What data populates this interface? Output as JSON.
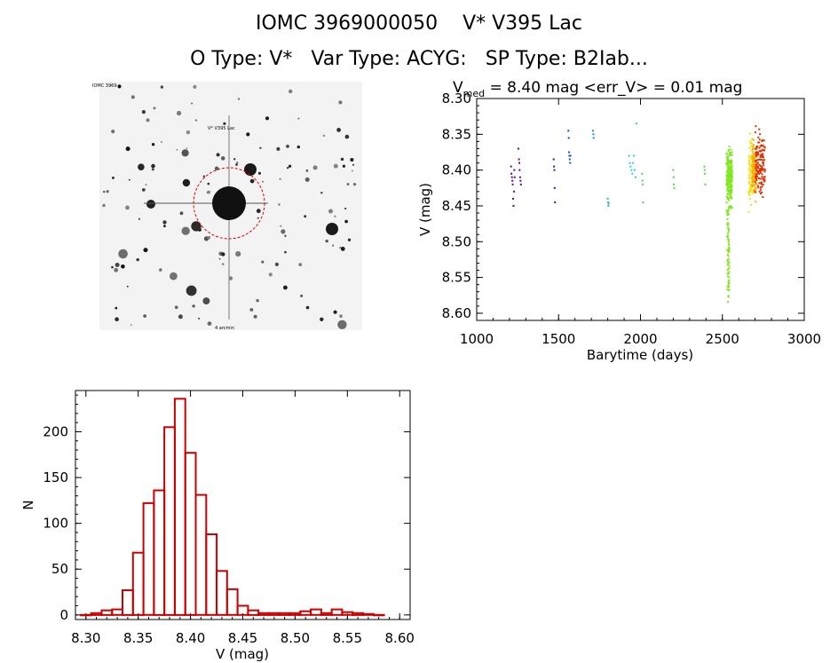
{
  "header": {
    "title_line1": "IOMC 3969000050    V* V395 Lac",
    "title_line2": "O Type: V*   Var Type: ACYG:   SP Type: B2Iab..."
  },
  "finder_chart": {
    "top_left_label": "IOMC 3969",
    "target_label": "V* V395 Lac",
    "bottom_label": "4 arcmin"
  },
  "colors": {
    "hist_bars": "#cc0000",
    "finder_circle": "#dd0000",
    "series_palette": [
      "#5a0a8c",
      "#2a1f9e",
      "#1b4fb8",
      "#1f8fd0",
      "#2fb8cc",
      "#28d0d8",
      "#5ad05a",
      "#7fe81e",
      "#e8e81e",
      "#ffaa00",
      "#dd3300"
    ]
  },
  "chart_data": [
    {
      "type": "scatter",
      "title_prefix": "V",
      "title_subscript": "med",
      "title_rest": " = 8.40 mag <err_V> = 0.01 mag",
      "xlabel": "Barytime (days)",
      "ylabel": "V (mag)",
      "xlim": [
        1000,
        3000
      ],
      "ylim": [
        8.3,
        8.61
      ],
      "y_inverted": true,
      "xticks": [
        1000,
        1500,
        2000,
        2500,
        3000
      ],
      "xtick_labels": [
        "1000",
        "1500",
        "2000",
        "2500",
        "3000"
      ],
      "yticks": [
        8.3,
        8.35,
        8.4,
        8.45,
        8.5,
        8.55,
        8.6
      ],
      "ytick_labels": [
        "8.30",
        "8.35",
        "8.40",
        "8.45",
        "8.50",
        "8.55",
        "8.60"
      ],
      "series": [
        {
          "name": "s1",
          "color": "#5a0a8c",
          "x": [
            1210,
            1212,
            1215,
            1218,
            1220,
            1222,
            1225,
            1228,
            1230,
            1232,
            1255,
            1258,
            1260,
            1262,
            1265,
            1268,
            1270
          ],
          "y": [
            8.395,
            8.405,
            8.41,
            8.415,
            8.42,
            8.44,
            8.45,
            8.43,
            8.4,
            8.41,
            8.37,
            8.385,
            8.39,
            8.4,
            8.41,
            8.415,
            8.42
          ]
        },
        {
          "name": "s2",
          "color": "#2a1f9e",
          "x": [
            1470,
            1472,
            1474,
            1476,
            1478
          ],
          "y": [
            8.385,
            8.395,
            8.4,
            8.425,
            8.445
          ]
        },
        {
          "name": "s3",
          "color": "#1b4fb8",
          "x": [
            1560,
            1562,
            1564,
            1566,
            1568,
            1570,
            1572
          ],
          "y": [
            8.345,
            8.355,
            8.375,
            8.38,
            8.385,
            8.39,
            8.38
          ]
        },
        {
          "name": "s4",
          "color": "#1f8fd0",
          "x": [
            1710,
            1712,
            1714
          ],
          "y": [
            8.345,
            8.35,
            8.355
          ]
        },
        {
          "name": "s5",
          "color": "#2fb8cc",
          "x": [
            1800,
            1802,
            1804,
            1806
          ],
          "y": [
            8.44,
            8.445,
            8.45,
            8.447
          ]
        },
        {
          "name": "s6",
          "color": "#28d0d8",
          "x": [
            1930,
            1935,
            1940,
            1945,
            1950,
            1955,
            1960,
            1965,
            1970,
            1975
          ],
          "y": [
            8.38,
            8.39,
            8.395,
            8.4,
            8.405,
            8.39,
            8.38,
            8.4,
            8.41,
            8.335
          ]
        },
        {
          "name": "s7",
          "color": "#5ad05a",
          "x": [
            2010,
            2012,
            2014,
            2016,
            2200,
            2202,
            2204,
            2206,
            2390,
            2392,
            2394,
            2396
          ],
          "y": [
            8.405,
            8.415,
            8.42,
            8.445,
            8.4,
            8.41,
            8.42,
            8.425,
            8.395,
            8.4,
            8.405,
            8.42
          ]
        }
      ],
      "dense_bands": [
        {
          "name": "g1",
          "color": "#7fe81e",
          "x_range": [
            2525,
            2560
          ],
          "y_center": 8.41,
          "y_spread": 0.03,
          "count": 220,
          "tail": {
            "y_range": [
              8.45,
              8.585
            ],
            "count": 70
          }
        },
        {
          "name": "g2",
          "color": "#e8e81e",
          "x_range": [
            2660,
            2690
          ],
          "y_center": 8.4,
          "y_spread": 0.035,
          "count": 90
        },
        {
          "name": "g3",
          "color": "#ffaa00",
          "x_range": [
            2680,
            2710
          ],
          "y_center": 8.4,
          "y_spread": 0.03,
          "count": 110
        },
        {
          "name": "g4",
          "color": "#dd3300",
          "x_range": [
            2700,
            2760
          ],
          "y_center": 8.39,
          "y_spread": 0.035,
          "count": 130
        }
      ]
    },
    {
      "type": "bar",
      "style": "histogram",
      "xlabel": "V (mag)",
      "ylabel": "N",
      "xlim": [
        8.29,
        8.61
      ],
      "ylim": [
        -5,
        245
      ],
      "xticks": [
        8.3,
        8.35,
        8.4,
        8.45,
        8.5,
        8.55,
        8.6
      ],
      "xtick_labels": [
        "8.30",
        "8.35",
        "8.40",
        "8.45",
        "8.50",
        "8.55",
        "8.60"
      ],
      "yticks": [
        0,
        50,
        100,
        150,
        200
      ],
      "ytick_labels": [
        "0",
        "50",
        "100",
        "150",
        "200"
      ],
      "bin_width": 0.01,
      "bin_starts": [
        8.295,
        8.305,
        8.315,
        8.325,
        8.335,
        8.345,
        8.355,
        8.365,
        8.375,
        8.385,
        8.395,
        8.405,
        8.415,
        8.425,
        8.435,
        8.445,
        8.455,
        8.465,
        8.475,
        8.485,
        8.495,
        8.505,
        8.515,
        8.525,
        8.535,
        8.545,
        8.555,
        8.565,
        8.575
      ],
      "values": [
        0,
        2,
        5,
        6,
        27,
        68,
        122,
        136,
        205,
        236,
        177,
        131,
        88,
        48,
        28,
        10,
        5,
        2,
        2,
        2,
        2,
        4,
        6,
        2,
        6,
        3,
        2,
        1,
        0
      ]
    }
  ]
}
